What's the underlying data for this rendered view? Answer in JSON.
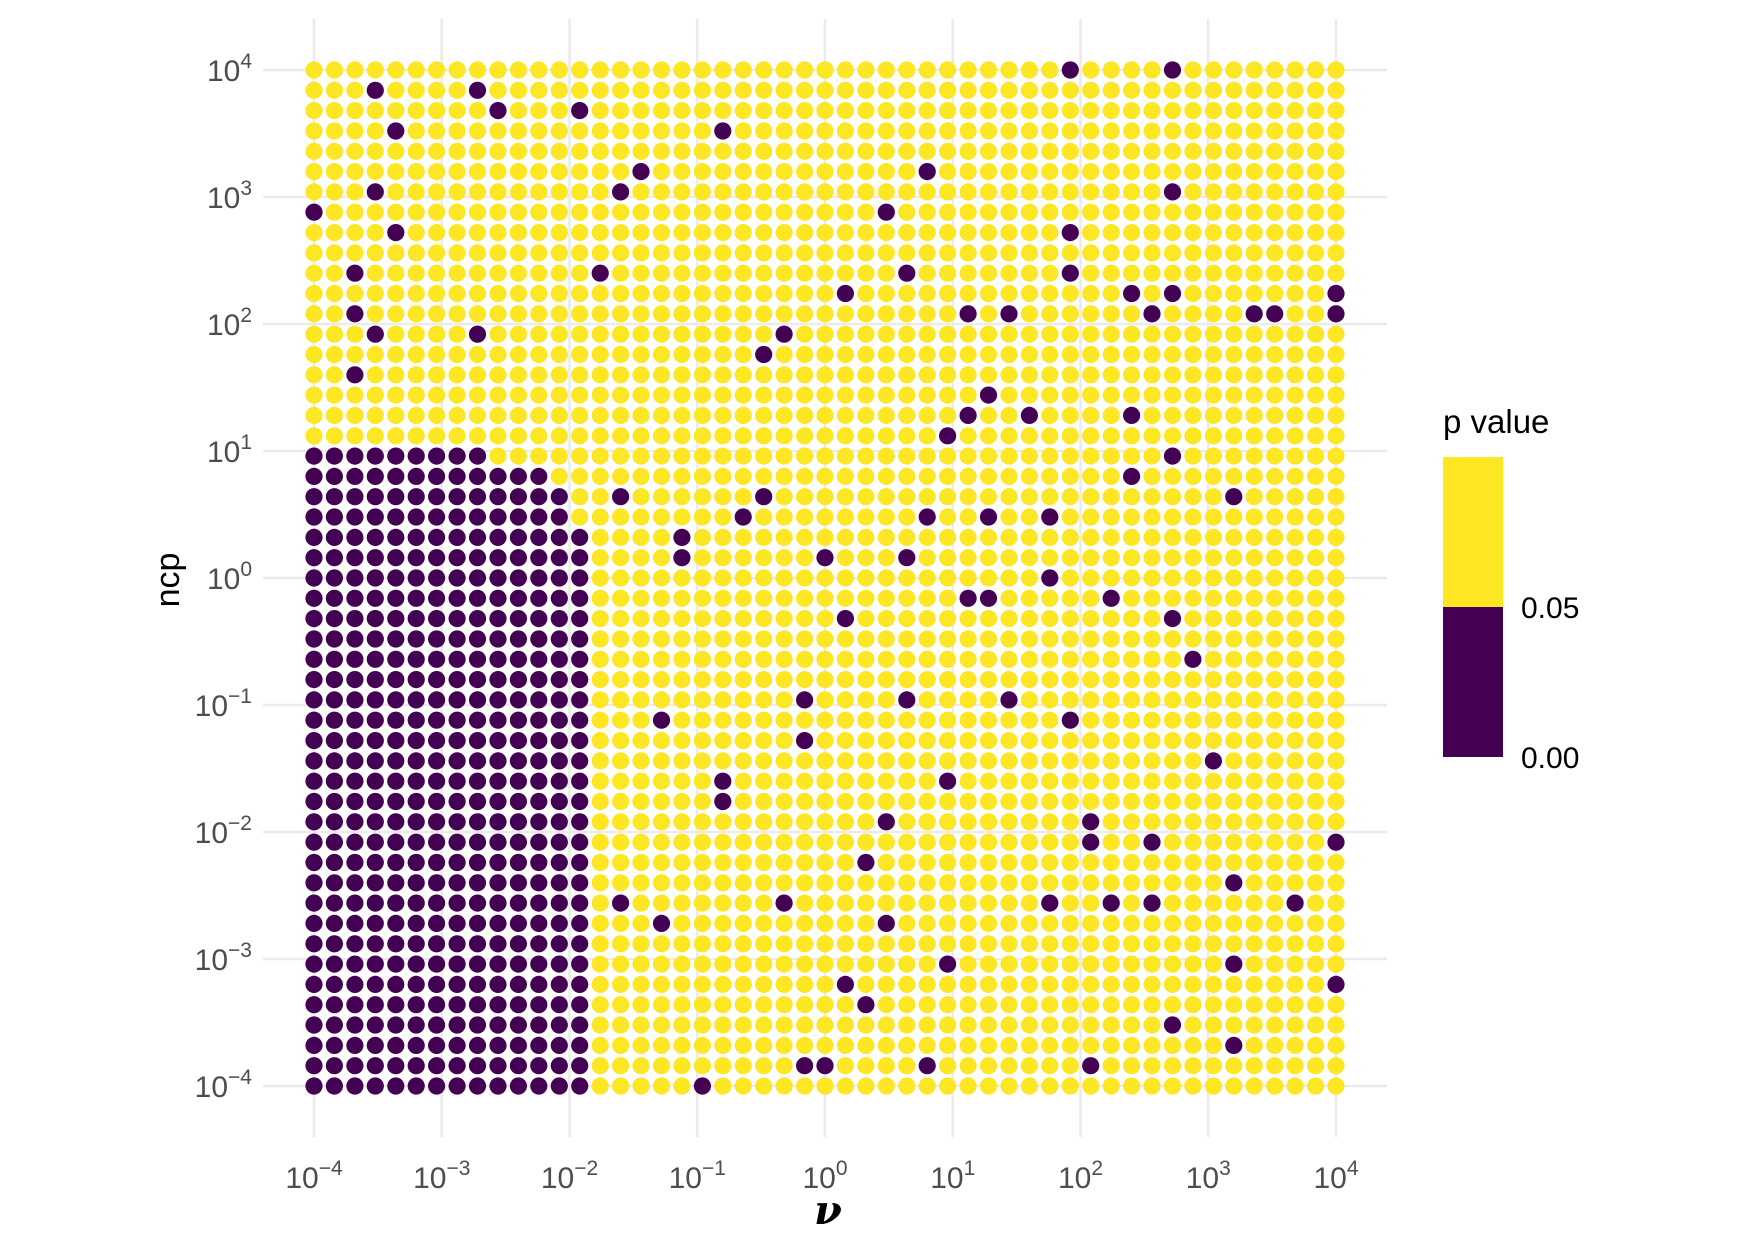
{
  "figure": {
    "x_axis": {
      "title": "ν",
      "tick_exponents": [
        -4,
        -3,
        -2,
        -1,
        0,
        1,
        2,
        3,
        4
      ]
    },
    "y_axis": {
      "title": "ncp",
      "tick_exponents": [
        4,
        3,
        2,
        1,
        0,
        -1,
        -2,
        -3,
        -4
      ]
    },
    "legend": {
      "title": "p value",
      "label_mid": "0.05",
      "label_low": "0.00"
    }
  },
  "chart_data": {
    "type": "scatter",
    "title": "",
    "xlabel": "ν",
    "ylabel": "ncp",
    "x_scale": "log10",
    "y_scale": "log10",
    "x_range_log10": [
      -4,
      4
    ],
    "y_range_log10": [
      -4,
      4
    ],
    "grid_points_per_axis": 51,
    "grid": "51×51 points evenly spaced in log10 space from 1e-4 to 1e4 on both axes",
    "value_meaning": "p value of test at each (ν, ncp) combination",
    "threshold": 0.05,
    "colors": {
      "high": "#FDE725",
      "low": "#440154",
      "gridline": "#EBEBEB"
    },
    "legend_position": "right",
    "legend_values": [
      0.05,
      0.0
    ],
    "dark_block": {
      "note": "contiguous low-p block; rows indexed from top (row 0 = ncp 10^4), cols from left (col 0 = ν 10^-4). Block spans rows 19-50 (ncp ≲ 10^1) and cols 0..max (ν ≲ 10^-2).",
      "first_row": 19,
      "row_max_col": {
        "19": 8,
        "20": 11,
        "21": 12,
        "22": 12
      },
      "default_max_col": 13
    },
    "dark_outliers": [
      [
        37,
        0
      ],
      [
        42,
        0
      ],
      [
        3,
        1
      ],
      [
        8,
        1
      ],
      [
        9,
        2
      ],
      [
        13,
        2
      ],
      [
        4,
        3
      ],
      [
        20,
        3
      ],
      [
        16,
        5
      ],
      [
        30,
        5
      ],
      [
        3,
        6
      ],
      [
        15,
        6
      ],
      [
        42,
        6
      ],
      [
        0,
        7
      ],
      [
        28,
        7
      ],
      [
        4,
        8
      ],
      [
        37,
        8
      ],
      [
        2,
        10
      ],
      [
        14,
        10
      ],
      [
        29,
        10
      ],
      [
        37,
        10
      ],
      [
        26,
        11
      ],
      [
        40,
        11
      ],
      [
        42,
        11
      ],
      [
        50,
        11
      ],
      [
        2,
        12
      ],
      [
        32,
        12
      ],
      [
        34,
        12
      ],
      [
        41,
        12
      ],
      [
        46,
        12
      ],
      [
        47,
        12
      ],
      [
        50,
        12
      ],
      [
        3,
        13
      ],
      [
        8,
        13
      ],
      [
        23,
        13
      ],
      [
        22,
        14
      ],
      [
        2,
        15
      ],
      [
        33,
        16
      ],
      [
        32,
        17
      ],
      [
        35,
        17
      ],
      [
        40,
        17
      ],
      [
        31,
        18
      ],
      [
        42,
        19
      ],
      [
        40,
        20
      ],
      [
        15,
        21
      ],
      [
        22,
        21
      ],
      [
        45,
        21
      ],
      [
        21,
        22
      ],
      [
        30,
        22
      ],
      [
        33,
        22
      ],
      [
        36,
        22
      ],
      [
        18,
        23
      ],
      [
        18,
        24
      ],
      [
        25,
        24
      ],
      [
        29,
        24
      ],
      [
        36,
        25
      ],
      [
        32,
        26
      ],
      [
        33,
        26
      ],
      [
        39,
        26
      ],
      [
        26,
        27
      ],
      [
        42,
        27
      ],
      [
        43,
        29
      ],
      [
        24,
        31
      ],
      [
        29,
        31
      ],
      [
        34,
        31
      ],
      [
        17,
        32
      ],
      [
        37,
        32
      ],
      [
        24,
        33
      ],
      [
        44,
        34
      ],
      [
        20,
        35
      ],
      [
        31,
        35
      ],
      [
        20,
        36
      ],
      [
        28,
        37
      ],
      [
        38,
        37
      ],
      [
        38,
        38
      ],
      [
        41,
        38
      ],
      [
        50,
        38
      ],
      [
        27,
        39
      ],
      [
        45,
        40
      ],
      [
        15,
        41
      ],
      [
        23,
        41
      ],
      [
        36,
        41
      ],
      [
        39,
        41
      ],
      [
        41,
        41
      ],
      [
        48,
        41
      ],
      [
        17,
        42
      ],
      [
        28,
        42
      ],
      [
        31,
        44
      ],
      [
        45,
        44
      ],
      [
        26,
        45
      ],
      [
        50,
        45
      ],
      [
        27,
        46
      ],
      [
        42,
        47
      ],
      [
        45,
        48
      ],
      [
        24,
        49
      ],
      [
        25,
        49
      ],
      [
        30,
        49
      ],
      [
        38,
        49
      ],
      [
        19,
        50
      ]
    ]
  }
}
